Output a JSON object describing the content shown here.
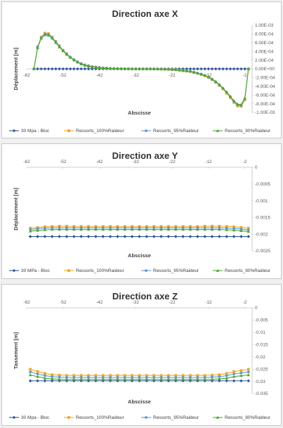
{
  "chart_data": [
    {
      "type": "line",
      "title": "Direction axe X",
      "xlabel": "Abscisse",
      "ylabel": "Déplacement [m]",
      "xlim": [
        -62,
        0
      ],
      "ylim": [
        -0.001,
        0.001
      ],
      "x_ticks": [
        "-62",
        "-52",
        "-42",
        "-32",
        "-22",
        "-12",
        "-2"
      ],
      "y_ticks": [
        "1.00E-03",
        "8.00E-04",
        "6.00E-04",
        "4.00E-04",
        "2.00E-04",
        "0.00E+00",
        "-2.00E-04",
        "-4.00E-04",
        "-6.00E-04",
        "-8.00E-04",
        "-1.00E-03"
      ],
      "y_axis_side": "right",
      "grid": false,
      "legend": "bottom",
      "x": [
        -60,
        -59,
        -58,
        -57,
        -56,
        -55,
        -54,
        -53,
        -52,
        -51,
        -50,
        -49,
        -48,
        -47,
        -46,
        -45,
        -44,
        -43,
        -42,
        -41,
        -40,
        -39,
        -38,
        -37,
        -36,
        -35,
        -34,
        -33,
        -32,
        -31,
        -30,
        -29,
        -28,
        -27,
        -26,
        -25,
        -24,
        -23,
        -22,
        -21,
        -20,
        -19,
        -18,
        -17,
        -16,
        -15,
        -14,
        -13,
        -12,
        -11,
        -10,
        -9,
        -8,
        -7,
        -6,
        -5,
        -4,
        -3,
        -2,
        -1
      ],
      "series": [
        {
          "name": "30 Mpa - Bloc",
          "color": "#2f5597",
          "marker": "diamond",
          "values": [
            0,
            0,
            0,
            0,
            0,
            0,
            0,
            0,
            0,
            0,
            0,
            0,
            0,
            0,
            0,
            0,
            0,
            0,
            0,
            0,
            0,
            0,
            0,
            0,
            0,
            0,
            0,
            0,
            0,
            0,
            0,
            0,
            0,
            0,
            0,
            0,
            0,
            0,
            0,
            0,
            0,
            0,
            0,
            0,
            0,
            0,
            0,
            0,
            0,
            0,
            0,
            0,
            0,
            0,
            0,
            0,
            0,
            0,
            0,
            0
          ]
        },
        {
          "name": "Ressorts_100%Raideur",
          "color": "#f5a623",
          "marker": "square",
          "values": [
            0,
            0.00051,
            0.00073,
            0.00082,
            0.00081,
            0.00073,
            0.00063,
            0.00053,
            0.00043,
            0.00035,
            0.00027,
            0.00021,
            0.00016,
            0.00012,
            9e-05,
            7e-05,
            5e-05,
            4e-05,
            3e-05,
            2e-05,
            1.5e-05,
            1e-05,
            7e-06,
            5e-06,
            3e-06,
            2e-06,
            1e-06,
            0,
            0,
            0,
            0,
            0,
            -1e-06,
            -2e-06,
            -3e-06,
            -5e-06,
            -7e-06,
            -1e-05,
            -1.5e-05,
            -2e-05,
            -3e-05,
            -4e-05,
            -5e-05,
            -6e-05,
            -8e-05,
            -0.0001,
            -0.00013,
            -0.00016,
            -0.0002,
            -0.00025,
            -0.00031,
            -0.00038,
            -0.00046,
            -0.00056,
            -0.00066,
            -0.00077,
            -0.00085,
            -0.00086,
            -0.00071,
            0
          ]
        },
        {
          "name": "Ressorts_95%Raideur",
          "color": "#5b9bd5",
          "marker": "circle",
          "values": [
            0,
            0.0005,
            0.00071,
            0.0008,
            0.00079,
            0.00072,
            0.00062,
            0.00052,
            0.00042,
            0.00034,
            0.00027,
            0.00021,
            0.00016,
            0.00012,
            9e-05,
            7e-05,
            5e-05,
            4e-05,
            3e-05,
            2e-05,
            1.5e-05,
            1e-05,
            7e-06,
            5e-06,
            3e-06,
            2e-06,
            1e-06,
            0,
            0,
            0,
            0,
            0,
            -1e-06,
            -2e-06,
            -3e-06,
            -5e-06,
            -7e-06,
            -1e-05,
            -1.5e-05,
            -2e-05,
            -3e-05,
            -4e-05,
            -5e-05,
            -6e-05,
            -8e-05,
            -0.0001,
            -0.00012,
            -0.00015,
            -0.00019,
            -0.00024,
            -0.0003,
            -0.00037,
            -0.00045,
            -0.00054,
            -0.00064,
            -0.00075,
            -0.00083,
            -0.00084,
            -0.00069,
            0
          ]
        },
        {
          "name": "Ressorts_90%Raideur",
          "color": "#4ea72e",
          "marker": "triangle",
          "values": [
            0,
            0.00048,
            0.0007,
            0.00078,
            0.00077,
            0.0007,
            0.0006,
            0.0005,
            0.00041,
            0.00033,
            0.00026,
            0.0002,
            0.00015,
            0.00011,
            8e-05,
            6e-05,
            5e-05,
            4e-05,
            3e-05,
            2e-05,
            1.5e-05,
            1e-05,
            7e-06,
            5e-06,
            3e-06,
            2e-06,
            1e-06,
            0,
            0,
            0,
            0,
            0,
            -1e-06,
            -2e-06,
            -3e-06,
            -5e-06,
            -7e-06,
            -1e-05,
            -1.5e-05,
            -2e-05,
            -3e-05,
            -4e-05,
            -5e-05,
            -6e-05,
            -8e-05,
            -0.0001,
            -0.00012,
            -0.00015,
            -0.00018,
            -0.00023,
            -0.00029,
            -0.00036,
            -0.00044,
            -0.00053,
            -0.00063,
            -0.00073,
            -0.00081,
            -0.00082,
            -0.00067,
            0
          ]
        }
      ]
    },
    {
      "type": "line",
      "title": "Direction axe Y",
      "xlabel": "Abscisse",
      "ylabel": "Déplacement [m]",
      "xlim": [
        -62,
        0
      ],
      "ylim": [
        -0.0025,
        0
      ],
      "x_ticks": [
        "-62",
        "-52",
        "-42",
        "-32",
        "-22",
        "-12",
        "-2"
      ],
      "y_ticks": [
        "0",
        "-0.0005",
        "-0.001",
        "-0.0015",
        "-0.002",
        "-0.0025"
      ],
      "y_axis_side": "right",
      "x_axis_position": "top",
      "grid": false,
      "legend": "bottom",
      "x": [
        -61,
        -59,
        -57,
        -55,
        -53,
        -51,
        -49,
        -47,
        -45,
        -43,
        -41,
        -39,
        -37,
        -35,
        -33,
        -31,
        -29,
        -27,
        -25,
        -23,
        -21,
        -19,
        -17,
        -15,
        -13,
        -11,
        -9,
        -7,
        -5,
        -3,
        -1
      ],
      "series": [
        {
          "name": "30 MPa - Bloc",
          "color": "#2f5597",
          "marker": "diamond",
          "values": [
            -0.00207,
            -0.00207,
            -0.00207,
            -0.00207,
            -0.00207,
            -0.00207,
            -0.00207,
            -0.00207,
            -0.00207,
            -0.00207,
            -0.00207,
            -0.00207,
            -0.00207,
            -0.00207,
            -0.00207,
            -0.00207,
            -0.00207,
            -0.00207,
            -0.00207,
            -0.00207,
            -0.00207,
            -0.00207,
            -0.00207,
            -0.00207,
            -0.00207,
            -0.00207,
            -0.00207,
            -0.00207,
            -0.00207,
            -0.00207,
            -0.00207
          ]
        },
        {
          "name": "Ressorts_100%Raideur",
          "color": "#f5a623",
          "marker": "square",
          "values": [
            -0.00182,
            -0.0018,
            -0.00178,
            -0.00177,
            -0.00176,
            -0.00176,
            -0.00177,
            -0.00177,
            -0.00177,
            -0.00177,
            -0.00177,
            -0.00177,
            -0.00177,
            -0.00177,
            -0.00177,
            -0.00177,
            -0.00177,
            -0.00177,
            -0.00177,
            -0.00177,
            -0.00177,
            -0.00177,
            -0.00177,
            -0.00177,
            -0.00176,
            -0.00176,
            -0.00176,
            -0.00177,
            -0.00178,
            -0.0018,
            -0.00182
          ]
        },
        {
          "name": "Ressorts_95%Raideur",
          "color": "#5b9bd5",
          "marker": "circle",
          "values": [
            -0.00186,
            -0.00184,
            -0.00182,
            -0.00181,
            -0.00181,
            -0.00181,
            -0.00181,
            -0.00181,
            -0.00181,
            -0.00181,
            -0.00181,
            -0.00181,
            -0.00181,
            -0.00181,
            -0.00181,
            -0.00181,
            -0.00181,
            -0.00181,
            -0.00181,
            -0.00181,
            -0.00181,
            -0.00181,
            -0.00181,
            -0.00181,
            -0.00181,
            -0.00181,
            -0.00181,
            -0.00182,
            -0.00183,
            -0.00185,
            -0.00187
          ]
        },
        {
          "name": "Ressorts_90%Raideur",
          "color": "#4ea72e",
          "marker": "triangle",
          "values": [
            -0.00191,
            -0.00189,
            -0.00187,
            -0.00186,
            -0.00186,
            -0.00186,
            -0.00186,
            -0.00186,
            -0.00186,
            -0.00186,
            -0.00186,
            -0.00186,
            -0.00186,
            -0.00186,
            -0.00186,
            -0.00186,
            -0.00186,
            -0.00186,
            -0.00186,
            -0.00186,
            -0.00186,
            -0.00186,
            -0.00186,
            -0.00186,
            -0.00186,
            -0.00186,
            -0.00186,
            -0.00187,
            -0.00188,
            -0.0019,
            -0.00192
          ]
        }
      ]
    },
    {
      "type": "line",
      "title": "Direction axe Z",
      "xlabel": "Abscisse",
      "ylabel": "Tassement [m]",
      "xlim": [
        -62,
        0
      ],
      "ylim": [
        -0.035,
        0
      ],
      "x_ticks": [
        "-62",
        "-52",
        "-42",
        "-32",
        "-22",
        "-12",
        "-2"
      ],
      "y_ticks": [
        "0",
        "-0.005",
        "-0.01",
        "-0.015",
        "-0.02",
        "-0.025",
        "-0.03",
        "-0.035"
      ],
      "y_axis_side": "right",
      "x_axis_position": "top",
      "grid": false,
      "legend": "bottom",
      "x": [
        -61,
        -59,
        -57,
        -55,
        -53,
        -51,
        -49,
        -47,
        -45,
        -43,
        -41,
        -39,
        -37,
        -35,
        -33,
        -31,
        -29,
        -27,
        -25,
        -23,
        -21,
        -19,
        -17,
        -15,
        -13,
        -11,
        -9,
        -7,
        -5,
        -3,
        -1
      ],
      "series": [
        {
          "name": "30 Mpa - Bloc",
          "color": "#2f5597",
          "marker": "diamond",
          "values": [
            -0.0298,
            -0.0298,
            -0.0298,
            -0.0298,
            -0.0298,
            -0.0298,
            -0.0298,
            -0.0298,
            -0.0298,
            -0.0298,
            -0.0298,
            -0.0298,
            -0.0298,
            -0.0298,
            -0.0298,
            -0.0298,
            -0.0298,
            -0.0298,
            -0.0298,
            -0.0298,
            -0.0298,
            -0.0298,
            -0.0298,
            -0.0298,
            -0.0298,
            -0.0298,
            -0.0298,
            -0.0298,
            -0.0298,
            -0.0298,
            -0.0298
          ]
        },
        {
          "name": "Ressorts_100%Raideur",
          "color": "#f5a623",
          "marker": "square",
          "values": [
            -0.0251,
            -0.026,
            -0.0268,
            -0.0273,
            -0.0275,
            -0.0276,
            -0.0276,
            -0.0276,
            -0.0276,
            -0.0276,
            -0.0276,
            -0.0276,
            -0.0276,
            -0.0276,
            -0.0276,
            -0.0276,
            -0.0276,
            -0.0276,
            -0.0276,
            -0.0276,
            -0.0276,
            -0.0276,
            -0.0276,
            -0.0276,
            -0.0276,
            -0.0275,
            -0.0273,
            -0.0268,
            -0.026,
            -0.0256,
            -0.0251
          ]
        },
        {
          "name": "Ressorts_95%Raideur",
          "color": "#5b9bd5",
          "marker": "circle",
          "values": [
            -0.0262,
            -0.027,
            -0.0277,
            -0.0281,
            -0.0283,
            -0.0284,
            -0.0284,
            -0.0284,
            -0.0284,
            -0.0284,
            -0.0284,
            -0.0284,
            -0.0284,
            -0.0284,
            -0.0284,
            -0.0284,
            -0.0284,
            -0.0284,
            -0.0284,
            -0.0284,
            -0.0284,
            -0.0284,
            -0.0284,
            -0.0284,
            -0.0284,
            -0.0283,
            -0.0281,
            -0.0277,
            -0.027,
            -0.0266,
            -0.0262
          ]
        },
        {
          "name": "Ressorts_90%Raideur",
          "color": "#4ea72e",
          "marker": "triangle",
          "values": [
            -0.0274,
            -0.0281,
            -0.0287,
            -0.029,
            -0.0292,
            -0.0292,
            -0.0292,
            -0.0292,
            -0.0292,
            -0.0292,
            -0.0292,
            -0.0292,
            -0.0292,
            -0.0292,
            -0.0292,
            -0.0292,
            -0.0292,
            -0.0292,
            -0.0292,
            -0.0292,
            -0.0292,
            -0.0292,
            -0.0292,
            -0.0292,
            -0.0292,
            -0.0292,
            -0.029,
            -0.0287,
            -0.0281,
            -0.0277,
            -0.0274
          ]
        }
      ]
    }
  ]
}
